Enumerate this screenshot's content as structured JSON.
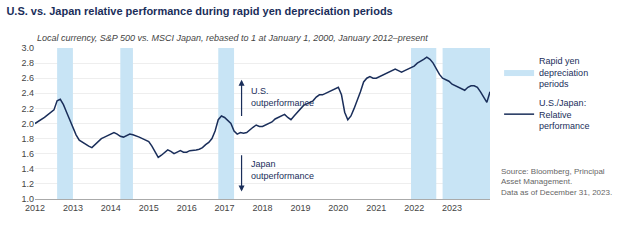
{
  "chart_data": {
    "type": "line",
    "title": "U.S. vs. Japan relative performance during rapid yen depreciation periods",
    "subtitle": "Local currency, S&P 500 vs. MSCI Japan, rebased to 1 at January 1, 2000, January 2012–present",
    "source": "Source: Bloomberg, Principal\nAsset Management.\nData as of December 31, 2023.",
    "annotations": [
      "U.S.\noutperformance",
      "Japan\noutperformance"
    ],
    "shaded_periods": {
      "name": "Rapid yen\ndepreciation\nperiods",
      "color": "#c8e4f5",
      "ranges": [
        [
          2012.583,
          2013.0
        ],
        [
          2014.25,
          2014.583
        ],
        [
          2016.833,
          2017.25
        ],
        [
          2021.917,
          2022.583
        ],
        [
          2022.75,
          2024.0
        ]
      ]
    },
    "x": [
      2012.0,
      2012.25,
      2012.5,
      2012.583,
      2012.667,
      2012.75,
      2012.833,
      2012.917,
      2013.0,
      2013.083,
      2013.167,
      2013.25,
      2013.333,
      2013.417,
      2013.5,
      2013.583,
      2013.667,
      2013.75,
      2013.833,
      2013.917,
      2014.0,
      2014.083,
      2014.167,
      2014.25,
      2014.333,
      2014.417,
      2014.5,
      2014.583,
      2014.667,
      2014.75,
      2014.833,
      2014.917,
      2015.0,
      2015.083,
      2015.167,
      2015.25,
      2015.333,
      2015.417,
      2015.5,
      2015.583,
      2015.667,
      2015.75,
      2015.833,
      2015.917,
      2016.0,
      2016.083,
      2016.167,
      2016.25,
      2016.333,
      2016.417,
      2016.5,
      2016.583,
      2016.667,
      2016.75,
      2016.833,
      2016.917,
      2017.0,
      2017.083,
      2017.167,
      2017.25,
      2017.333,
      2017.417,
      2017.5,
      2017.583,
      2017.667,
      2017.75,
      2017.833,
      2017.917,
      2018.0,
      2018.083,
      2018.167,
      2018.25,
      2018.333,
      2018.417,
      2018.5,
      2018.583,
      2018.667,
      2018.75,
      2018.833,
      2018.917,
      2019.0,
      2019.083,
      2019.167,
      2019.25,
      2019.333,
      2019.417,
      2019.5,
      2019.583,
      2019.667,
      2019.75,
      2019.833,
      2019.917,
      2020.0,
      2020.083,
      2020.167,
      2020.25,
      2020.333,
      2020.417,
      2020.5,
      2020.583,
      2020.667,
      2020.75,
      2020.833,
      2020.917,
      2021.0,
      2021.083,
      2021.167,
      2021.25,
      2021.333,
      2021.417,
      2021.5,
      2021.583,
      2021.667,
      2021.75,
      2021.833,
      2021.917,
      2022.0,
      2022.083,
      2022.167,
      2022.25,
      2022.333,
      2022.417,
      2022.5,
      2022.583,
      2022.667,
      2022.75,
      2022.833,
      2022.917,
      2023.0,
      2023.083,
      2023.167,
      2023.25,
      2023.333,
      2023.417,
      2023.5,
      2023.583,
      2023.667,
      2023.75,
      2023.833,
      2023.917,
      2024.0
    ],
    "series": [
      {
        "name": "U.S./Japan:\nRelative\nperformance",
        "color": "#1a2e5a",
        "values": [
          2.0,
          2.08,
          2.18,
          2.3,
          2.32,
          2.25,
          2.15,
          2.05,
          1.95,
          1.85,
          1.78,
          1.75,
          1.72,
          1.7,
          1.68,
          1.72,
          1.76,
          1.8,
          1.82,
          1.84,
          1.86,
          1.88,
          1.86,
          1.83,
          1.82,
          1.84,
          1.86,
          1.85,
          1.84,
          1.82,
          1.8,
          1.78,
          1.76,
          1.7,
          1.62,
          1.55,
          1.58,
          1.62,
          1.65,
          1.63,
          1.6,
          1.62,
          1.64,
          1.62,
          1.62,
          1.64,
          1.64,
          1.65,
          1.66,
          1.68,
          1.72,
          1.75,
          1.8,
          1.9,
          2.05,
          2.1,
          2.08,
          2.04,
          2.0,
          1.9,
          1.86,
          1.88,
          1.87,
          1.88,
          1.92,
          1.95,
          1.98,
          1.96,
          1.96,
          1.98,
          2.0,
          2.02,
          2.06,
          2.08,
          2.1,
          2.12,
          2.08,
          2.05,
          2.1,
          2.15,
          2.2,
          2.24,
          2.26,
          2.28,
          2.3,
          2.35,
          2.38,
          2.38,
          2.4,
          2.42,
          2.44,
          2.46,
          2.48,
          2.38,
          2.15,
          2.05,
          2.1,
          2.2,
          2.3,
          2.42,
          2.55,
          2.6,
          2.62,
          2.6,
          2.6,
          2.62,
          2.64,
          2.66,
          2.68,
          2.7,
          2.72,
          2.7,
          2.68,
          2.7,
          2.72,
          2.74,
          2.76,
          2.8,
          2.82,
          2.85,
          2.88,
          2.85,
          2.8,
          2.72,
          2.65,
          2.6,
          2.58,
          2.56,
          2.52,
          2.5,
          2.48,
          2.46,
          2.44,
          2.48,
          2.5,
          2.5,
          2.48,
          2.42,
          2.35,
          2.28,
          2.42
        ]
      }
    ],
    "xlim": [
      2012,
      2024
    ],
    "xticks": [
      2012,
      2013,
      2014,
      2015,
      2016,
      2017,
      2018,
      2019,
      2020,
      2021,
      2022,
      2023
    ],
    "ylim": [
      1.0,
      3.0
    ],
    "yticks": [
      {
        "value": 1.0,
        "label": "1.0"
      },
      1.2,
      1.4,
      1.6,
      1.8,
      {
        "value": 2.0,
        "label": "2.0"
      },
      2.2,
      2.4,
      2.6,
      2.8,
      {
        "value": 3.0,
        "label": "3.0"
      }
    ],
    "grid": true
  }
}
